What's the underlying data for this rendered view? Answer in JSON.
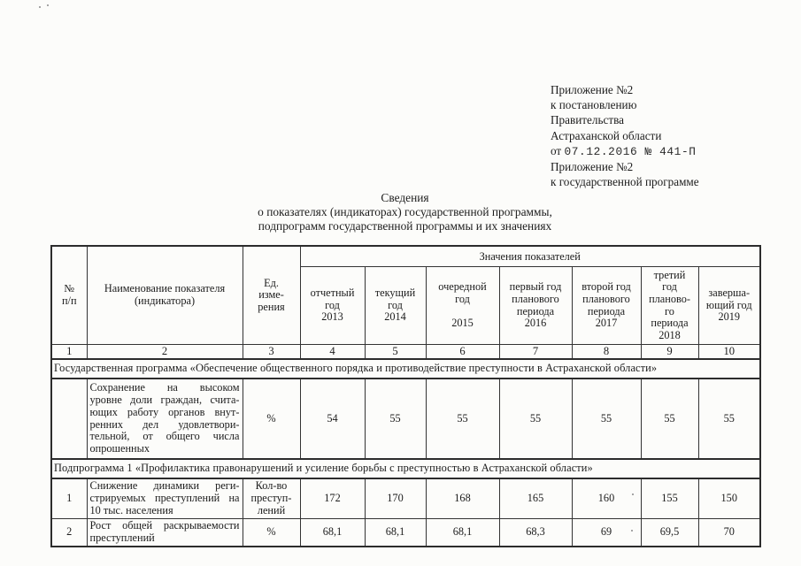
{
  "appendix": {
    "lines1": [
      "Приложение №2",
      "к постановлению",
      "Правительства",
      "Астраханской области"
    ],
    "date_prefix": "от",
    "date_stamp": "07.12.2016 № 441-П",
    "lines2": [
      "Приложение №2",
      "к государственной программе"
    ]
  },
  "title": {
    "lines": [
      "Сведения",
      "о показателях (индикаторах) государственной программы,",
      "подпрограмм государственной программы и их значениях"
    ]
  },
  "table": {
    "header": {
      "num": "№\nп/п",
      "name": "Наименование показателя\n(индикатора)",
      "unit": "Ед.\nизме-\nрения",
      "values_group": "Значения показателей",
      "years": [
        "отчетный\nгод\n2013",
        "текущий\nгод\n2014",
        "очередной\nгод\n\n2015",
        "первый год\nпланового\nпериода\n2016",
        "второй год\nпланового\nпериода\n2017",
        "третий\nгод\nпланово-\nго\nпериода\n2018",
        "заверша-\nющий год\n2019"
      ]
    },
    "colnums": [
      "1",
      "2",
      "3",
      "4",
      "5",
      "6",
      "7",
      "8",
      "9",
      "10"
    ],
    "section_program": "Государственная программа «Обеспечение общественного порядка и противодействие преступности в Астраханской области»",
    "section_subprogram": "Подпрограмма 1 «Профилактика правонарушений и усиление борьбы с преступностью в Астраханской области»",
    "rows": [
      {
        "num": "",
        "name": "Сохранение на высоком\nуровне доли граждан, счита-\nющих работу органов внут-\nренних дел удовлетвори-\nтельной, от общего числа\nопрошенных",
        "unit": "%",
        "values": [
          "54",
          "55",
          "55",
          "55",
          "55",
          "55",
          "55"
        ]
      },
      {
        "num": "1",
        "name": "Снижение динамики реги-\nстрируемых преступлений на\n10 тыс. населения",
        "unit": "Кол-во\nпреступ-\nлений",
        "values": [
          "172",
          "170",
          "168",
          "165",
          "160",
          "155",
          "150"
        ]
      },
      {
        "num": "2",
        "name": "Рост общей раскрываемости\nпреступлений",
        "unit": "%",
        "values": [
          "68,1",
          "68,1",
          "68,1",
          "68,3",
          "69",
          "69,5",
          "70"
        ]
      }
    ]
  }
}
